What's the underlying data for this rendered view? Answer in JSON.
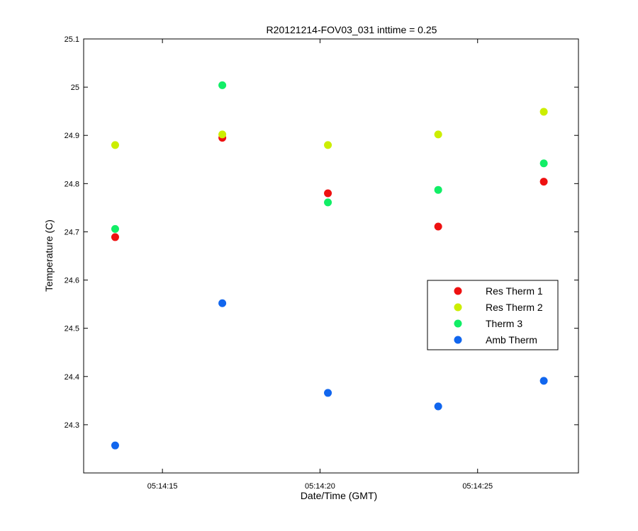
{
  "chart_data": {
    "type": "scatter",
    "title": "R20121214-FOV03_031 inttime = 0.25",
    "xlabel": "Date/Time (GMT)",
    "ylabel": "Temperature (C)",
    "x_unit": "time of day (GMT), seconds after 05:14:00",
    "xlim": [
      12.5,
      28.2
    ],
    "ylim": [
      24.2,
      25.1
    ],
    "x_ticks": [
      {
        "value": 15,
        "label": "05:14:15"
      },
      {
        "value": 20,
        "label": "05:14:20"
      },
      {
        "value": 25,
        "label": "05:14:25"
      }
    ],
    "y_ticks": [
      {
        "value": 24.3,
        "label": "24.3"
      },
      {
        "value": 24.4,
        "label": "24.4"
      },
      {
        "value": 24.5,
        "label": "24.5"
      },
      {
        "value": 24.6,
        "label": "24.6"
      },
      {
        "value": 24.7,
        "label": "24.7"
      },
      {
        "value": 24.8,
        "label": "24.8"
      },
      {
        "value": 24.9,
        "label": "24.9"
      },
      {
        "value": 25.0,
        "label": "25"
      },
      {
        "value": 25.1,
        "label": "25.1"
      }
    ],
    "x": [
      13.5,
      16.9,
      20.25,
      23.75,
      27.1
    ],
    "grid": false,
    "legend_position": "right",
    "series": [
      {
        "name": "Res Therm 1",
        "color": "#ee1111",
        "values": [
          24.689,
          24.895,
          24.78,
          24.711,
          24.804
        ]
      },
      {
        "name": "Res Therm 2",
        "color": "#ccee00",
        "values": [
          24.88,
          24.902,
          24.88,
          24.902,
          24.949
        ]
      },
      {
        "name": "Therm 3",
        "color": "#11ee66",
        "values": [
          24.706,
          25.004,
          24.761,
          24.787,
          24.842
        ]
      },
      {
        "name": "Amb Therm",
        "color": "#1166ee",
        "values": [
          24.257,
          24.552,
          24.366,
          24.338,
          24.391
        ]
      }
    ]
  }
}
